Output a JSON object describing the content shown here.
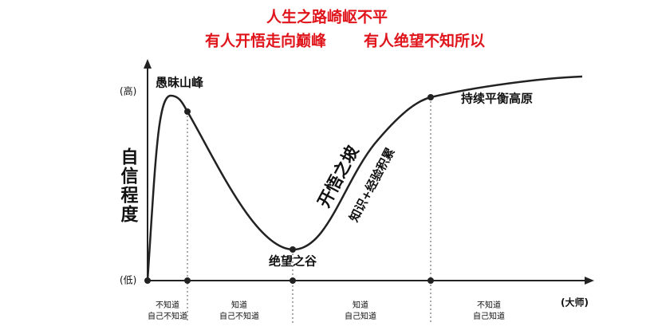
{
  "title": {
    "line1": "人生之路崎岖不平",
    "line2_left": "有人开悟走向巅峰",
    "line2_right": "有人绝望不知所以"
  },
  "y_axis": {
    "label": "自信程度",
    "high": "(高)",
    "low": "(低)"
  },
  "x_axis": {
    "end": "(大师)"
  },
  "curve_labels": {
    "peak": "愚昧山峰",
    "valley": "绝望之谷",
    "slope": "开悟之坡",
    "slope_note": "知识+经验积累",
    "plateau": "持续平衡高原"
  },
  "stages": [
    {
      "line1": "不知道",
      "line2": "自己不知道"
    },
    {
      "line1": "知道",
      "line2": "自己不知道"
    },
    {
      "line1": "知道",
      "line2": "自己知道"
    },
    {
      "line1": "不知道",
      "line2": "自己知道"
    }
  ]
}
